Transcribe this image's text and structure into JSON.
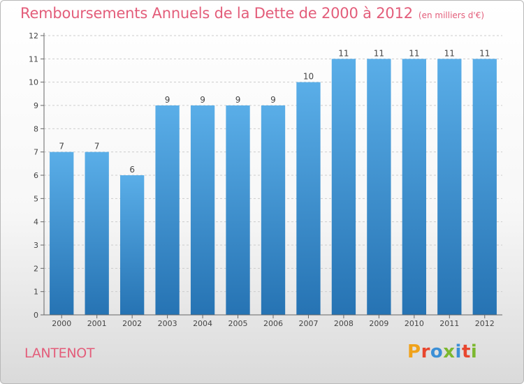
{
  "header": {
    "title": "Remboursements Annuels de la Dette de 2000 à 2012",
    "unit": "(en milliers d'€)"
  },
  "footer": {
    "town": "LANTENOT",
    "logo_letters": [
      "P",
      "r",
      "o",
      "x",
      "i",
      "t",
      "i"
    ]
  },
  "colors": {
    "title": "#e35d7a",
    "bar_top": "#5aaee8",
    "bar_bottom": "#2673b3",
    "grid": "#cccccc",
    "logo": [
      "#f0a21a",
      "#e8462e",
      "#3b8fd6",
      "#7cb82f",
      "#3b8fd6",
      "#e8462e",
      "#7cb82f"
    ]
  },
  "chart_data": {
    "type": "bar",
    "title": "Remboursements Annuels de la Dette de 2000 à 2012",
    "subtitle": "(en milliers d'€)",
    "xlabel": "",
    "ylabel": "",
    "categories": [
      "2000",
      "2001",
      "2002",
      "2003",
      "2004",
      "2005",
      "2006",
      "2007",
      "2008",
      "2009",
      "2010",
      "2011",
      "2012"
    ],
    "values": [
      7,
      7,
      6,
      9,
      9,
      9,
      9,
      10,
      11,
      11,
      11,
      11,
      11
    ],
    "ylim": [
      0,
      12
    ],
    "yticks": [
      0,
      1,
      2,
      3,
      4,
      5,
      6,
      7,
      8,
      9,
      10,
      11,
      12
    ],
    "grid": true,
    "data_labels": true,
    "legend": false
  }
}
